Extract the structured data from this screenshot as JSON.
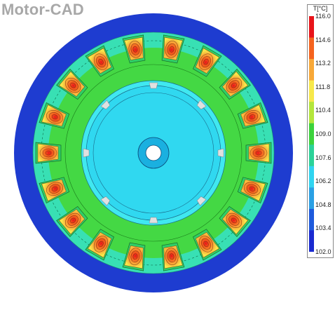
{
  "logo": {
    "text": "Motor-CAD"
  },
  "legend": {
    "title": "T[°C]",
    "ticks": [
      "116.0",
      "114.6",
      "113.2",
      "111.8",
      "110.4",
      "109.0",
      "107.6",
      "106.2",
      "104.8",
      "103.4",
      "102.0"
    ],
    "colors": [
      "#e8141a",
      "#f5631e",
      "#f8a838",
      "#f7e84a",
      "#b4e63c",
      "#3cd23c",
      "#2cd298",
      "#30d4f0",
      "#2aa0e4",
      "#1e5adc",
      "#1a2ad0"
    ]
  },
  "motor": {
    "slots": 18,
    "housing_color": "#1e3cd0",
    "stator_back_color": "#38e0b4",
    "stator_tooth_color": "#44d844",
    "airgap_color": "#40e8f0",
    "rotor_color": "#30d8f0",
    "shaft_color": "#1ab0e0",
    "winding_hot": "#e8141a",
    "winding_warm": "#f8a838",
    "winding_cool": "#f7e84a"
  }
}
